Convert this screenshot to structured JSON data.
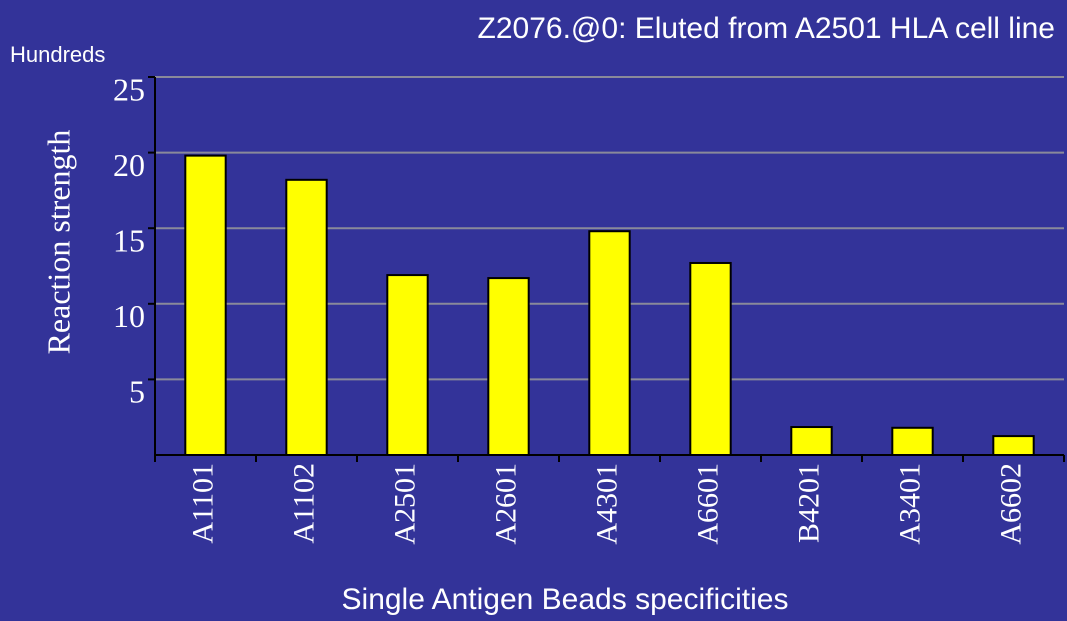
{
  "chart_data": {
    "type": "bar",
    "title": "Z2076.@0: Eluted from A2501 HLA cell line",
    "y_unit": "Hundreds",
    "ylabel": "Reaction strength",
    "xlabel": "Single Antigen Beads specificities",
    "categories": [
      "A1101",
      "A1102",
      "A2501",
      "A2601",
      "A4301",
      "A6601",
      "B4201",
      "A3401",
      "A6602"
    ],
    "values": [
      19.8,
      18.2,
      11.9,
      11.7,
      14.8,
      12.7,
      1.85,
      1.8,
      1.25
    ],
    "color": "#ffff00",
    "ylim": [
      0,
      25
    ],
    "yticks": [
      5,
      10,
      15,
      20,
      25
    ],
    "grid": true
  }
}
